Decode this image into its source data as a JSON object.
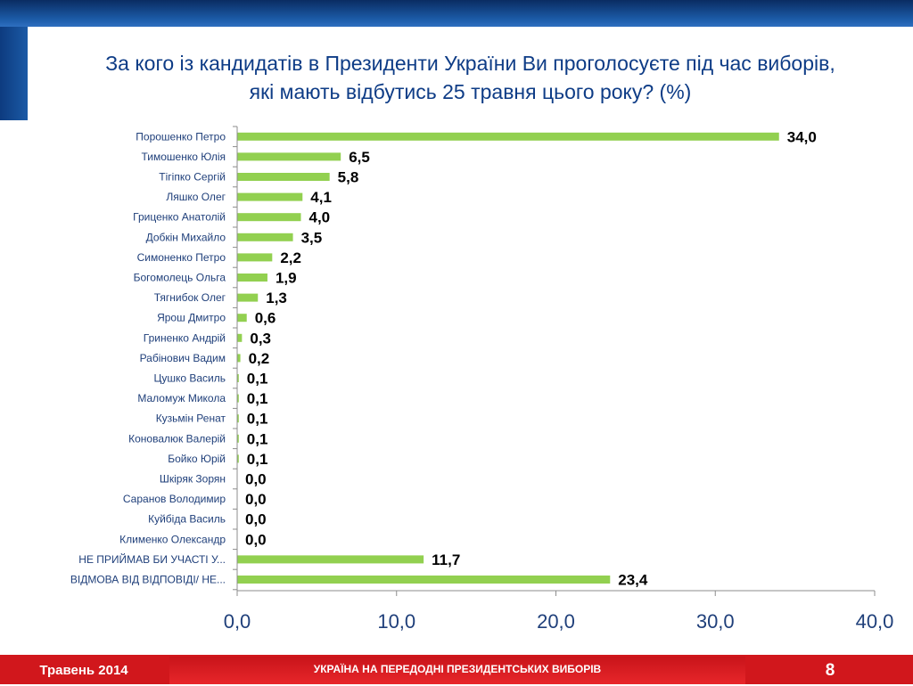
{
  "slide": {
    "title_line1": "За кого із кандидатів в Президенти України Ви проголосуєте під час виборів,",
    "title_line2": "які мають відбутись 25 травня цього року? (%)",
    "footer_date": "Травень 2014",
    "footer_center": "УКРАЇНА НА ПЕРЕДОДНІ ПРЕЗИДЕНТСЬКИХ ВИБОРІВ",
    "page_number": "8"
  },
  "colors": {
    "bar": "#92d050",
    "title": "#0e3c86",
    "axis_tick_labels": "#1f3f7a",
    "footer": "#d1171c"
  },
  "chart_data": {
    "type": "bar",
    "orientation": "horizontal",
    "categories": [
      "Порошенко Петро",
      "Тимошенко Юлія",
      "Тігіпко Сергій",
      "Ляшко Олег",
      "Гриценко Анатолій",
      "Добкін Михайло",
      "Симоненко Петро",
      "Богомолець Ольга",
      "Тягнибок Олег",
      "Ярош Дмитро",
      "Гриненко Андрій",
      "Рабінович Вадим",
      "Цушко Василь",
      "Маломуж Микола",
      "Кузьмін Ренат",
      "Коновалюк Валерій",
      "Бойко Юрій",
      "Шкіряк Зорян",
      "Саранов Володимир",
      "Куйбіда Василь",
      "Клименко Олександр",
      "НЕ ПРИЙМАВ БИ УЧАСТІ У...",
      "ВІДМОВА ВІД ВІДПОВІДІ/ НЕ..."
    ],
    "values": [
      34.0,
      6.5,
      5.8,
      4.1,
      4.0,
      3.5,
      2.2,
      1.9,
      1.3,
      0.6,
      0.3,
      0.2,
      0.1,
      0.1,
      0.1,
      0.1,
      0.1,
      0.0,
      0.0,
      0.0,
      0.0,
      11.7,
      23.4
    ],
    "value_labels": [
      "34,0",
      "6,5",
      "5,8",
      "4,1",
      "4,0",
      "3,5",
      "2,2",
      "1,9",
      "1,3",
      "0,6",
      "0,3",
      "0,2",
      "0,1",
      "0,1",
      "0,1",
      "0,1",
      "0,1",
      "0,0",
      "0,0",
      "0,0",
      "0,0",
      "11,7",
      "23,4"
    ],
    "xlim": [
      0,
      40
    ],
    "xticks": [
      0,
      10,
      20,
      30,
      40
    ],
    "xtick_labels": [
      "0,0",
      "10,0",
      "20,0",
      "30,0",
      "40,0"
    ],
    "grid": false,
    "legend": "none"
  }
}
